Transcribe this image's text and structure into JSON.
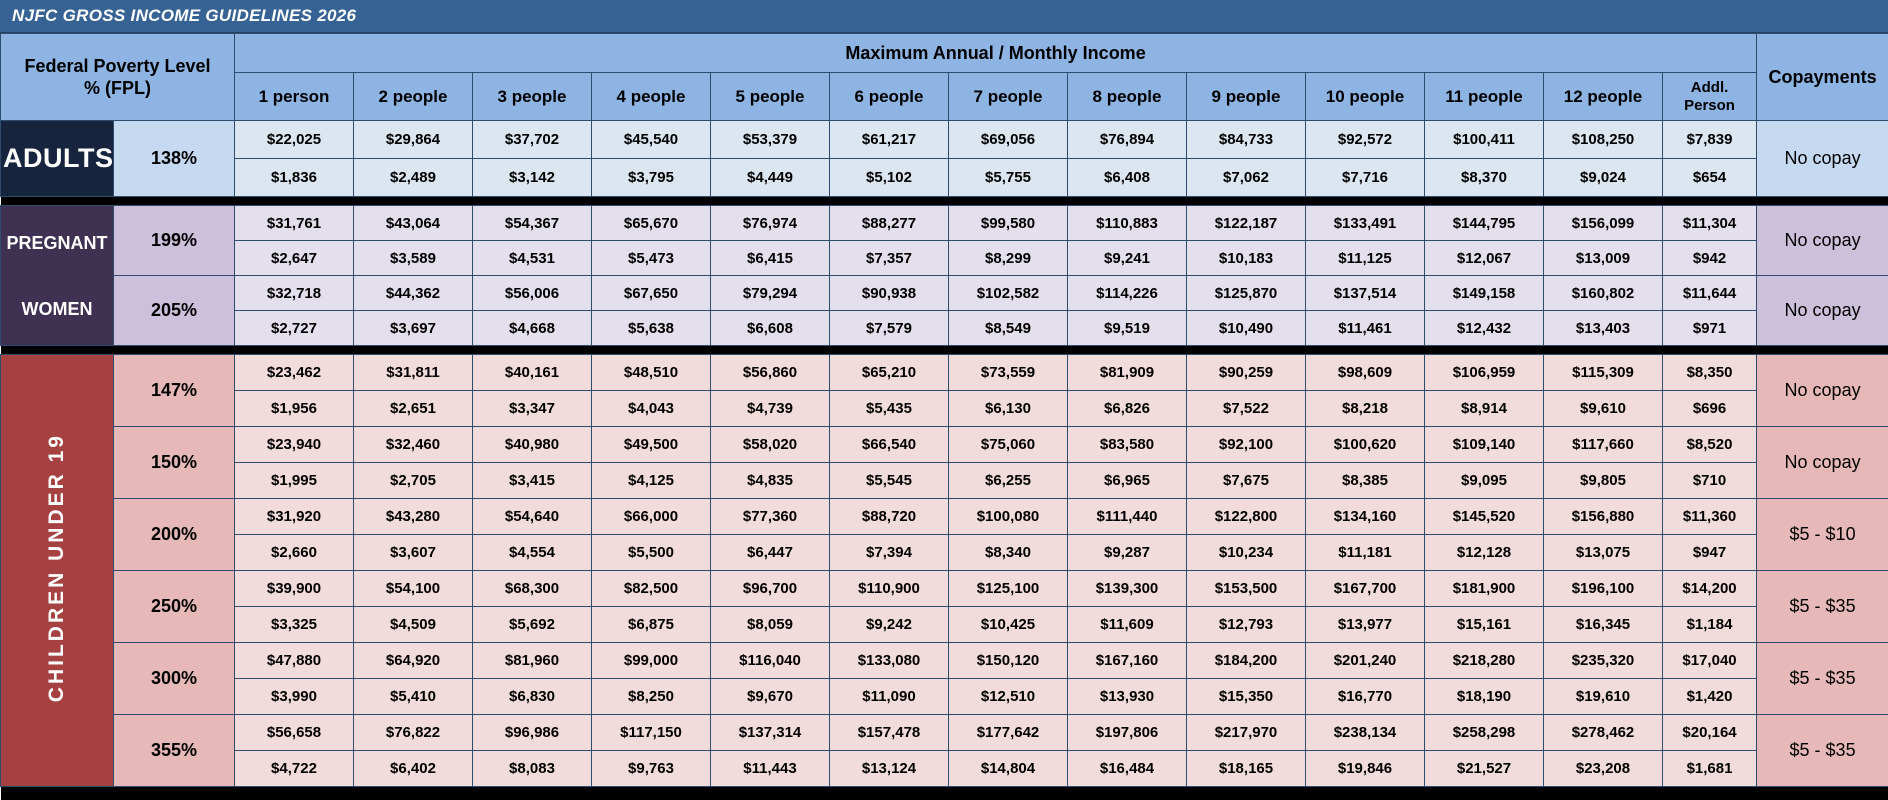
{
  "title": "NJFC GROSS INCOME GUIDELINES 2026",
  "colors": {
    "title_bar_bg": "#376394",
    "header_bg": "#8DB4E2",
    "grid_line": "#2E4D6E",
    "separator": "#000000"
  },
  "header": {
    "fpl_label": "Federal Poverty Level\n% (FPL)",
    "income_label": "Maximum Annual / Monthly Income",
    "copayments_label": "Copayments",
    "columns": [
      "1 person",
      "2 people",
      "3 people",
      "4 people",
      "5 people",
      "6 people",
      "7 people",
      "8 people",
      "9 people",
      "10 people",
      "11 people",
      "12 people",
      "Addl.\nPerson"
    ]
  },
  "groups": [
    {
      "id": "adults",
      "label": "ADULTS",
      "vertical_text": false,
      "colors": {
        "label_bg": "#16243E",
        "label_text": "#FFFFFF",
        "pct_bg": "#C5D9F1",
        "cell_bg": "#DCE6F1",
        "copay_bg": "#C5D9F1"
      },
      "rows": [
        {
          "fpl": "138%",
          "annual": [
            "$22,025",
            "$29,864",
            "$37,702",
            "$45,540",
            "$53,379",
            "$61,217",
            "$69,056",
            "$76,894",
            "$84,733",
            "$92,572",
            "$100,411",
            "$108,250",
            "$7,839"
          ],
          "monthly": [
            "$1,836",
            "$2,489",
            "$3,142",
            "$3,795",
            "$4,449",
            "$5,102",
            "$5,755",
            "$6,408",
            "$7,062",
            "$7,716",
            "$8,370",
            "$9,024",
            "$654"
          ],
          "copay": "No copay"
        }
      ]
    },
    {
      "id": "pregnant-women",
      "label": "PREGNANT WOMEN",
      "vertical_text": false,
      "colors": {
        "label_bg": "#3F3152",
        "label_text": "#FFFFFF",
        "pct_bg": "#CCC0DA",
        "cell_bg": "#E4DFEC",
        "copay_bg": "#CCC0DA"
      },
      "rows": [
        {
          "fpl": "199%",
          "annual": [
            "$31,761",
            "$43,064",
            "$54,367",
            "$65,670",
            "$76,974",
            "$88,277",
            "$99,580",
            "$110,883",
            "$122,187",
            "$133,491",
            "$144,795",
            "$156,099",
            "$11,304"
          ],
          "monthly": [
            "$2,647",
            "$3,589",
            "$4,531",
            "$5,473",
            "$6,415",
            "$7,357",
            "$8,299",
            "$9,241",
            "$10,183",
            "$11,125",
            "$12,067",
            "$13,009",
            "$942"
          ],
          "copay": "No copay"
        },
        {
          "fpl": "205%",
          "annual": [
            "$32,718",
            "$44,362",
            "$56,006",
            "$67,650",
            "$79,294",
            "$90,938",
            "$102,582",
            "$114,226",
            "$125,870",
            "$137,514",
            "$149,158",
            "$160,802",
            "$11,644"
          ],
          "monthly": [
            "$2,727",
            "$3,697",
            "$4,668",
            "$5,638",
            "$6,608",
            "$7,579",
            "$8,549",
            "$9,519",
            "$10,490",
            "$11,461",
            "$12,432",
            "$13,403",
            "$971"
          ],
          "copay": "No copay"
        }
      ]
    },
    {
      "id": "children-under-19",
      "label": "CHILDREN UNDER 19",
      "vertical_text": true,
      "colors": {
        "label_bg": "#A64141",
        "label_text": "#FFFFFF",
        "pct_bg": "#E6B8B7",
        "cell_bg": "#F2DCDB",
        "copay_bg": "#E6B8B7"
      },
      "rows": [
        {
          "fpl": "147%",
          "annual": [
            "$23,462",
            "$31,811",
            "$40,161",
            "$48,510",
            "$56,860",
            "$65,210",
            "$73,559",
            "$81,909",
            "$90,259",
            "$98,609",
            "$106,959",
            "$115,309",
            "$8,350"
          ],
          "monthly": [
            "$1,956",
            "$2,651",
            "$3,347",
            "$4,043",
            "$4,739",
            "$5,435",
            "$6,130",
            "$6,826",
            "$7,522",
            "$8,218",
            "$8,914",
            "$9,610",
            "$696"
          ],
          "copay": "No copay"
        },
        {
          "fpl": "150%",
          "annual": [
            "$23,940",
            "$32,460",
            "$40,980",
            "$49,500",
            "$58,020",
            "$66,540",
            "$75,060",
            "$83,580",
            "$92,100",
            "$100,620",
            "$109,140",
            "$117,660",
            "$8,520"
          ],
          "monthly": [
            "$1,995",
            "$2,705",
            "$3,415",
            "$4,125",
            "$4,835",
            "$5,545",
            "$6,255",
            "$6,965",
            "$7,675",
            "$8,385",
            "$9,095",
            "$9,805",
            "$710"
          ],
          "copay": "No copay"
        },
        {
          "fpl": "200%",
          "annual": [
            "$31,920",
            "$43,280",
            "$54,640",
            "$66,000",
            "$77,360",
            "$88,720",
            "$100,080",
            "$111,440",
            "$122,800",
            "$134,160",
            "$145,520",
            "$156,880",
            "$11,360"
          ],
          "monthly": [
            "$2,660",
            "$3,607",
            "$4,554",
            "$5,500",
            "$6,447",
            "$7,394",
            "$8,340",
            "$9,287",
            "$10,234",
            "$11,181",
            "$12,128",
            "$13,075",
            "$947"
          ],
          "copay": "$5 - $10"
        },
        {
          "fpl": "250%",
          "annual": [
            "$39,900",
            "$54,100",
            "$68,300",
            "$82,500",
            "$96,700",
            "$110,900",
            "$125,100",
            "$139,300",
            "$153,500",
            "$167,700",
            "$181,900",
            "$196,100",
            "$14,200"
          ],
          "monthly": [
            "$3,325",
            "$4,509",
            "$5,692",
            "$6,875",
            "$8,059",
            "$9,242",
            "$10,425",
            "$11,609",
            "$12,793",
            "$13,977",
            "$15,161",
            "$16,345",
            "$1,184"
          ],
          "copay": "$5 - $35"
        },
        {
          "fpl": "300%",
          "annual": [
            "$47,880",
            "$64,920",
            "$81,960",
            "$99,000",
            "$116,040",
            "$133,080",
            "$150,120",
            "$167,160",
            "$184,200",
            "$201,240",
            "$218,280",
            "$235,320",
            "$17,040"
          ],
          "monthly": [
            "$3,990",
            "$5,410",
            "$6,830",
            "$8,250",
            "$9,670",
            "$11,090",
            "$12,510",
            "$13,930",
            "$15,350",
            "$16,770",
            "$18,190",
            "$19,610",
            "$1,420"
          ],
          "copay": "$5 - $35"
        },
        {
          "fpl": "355%",
          "annual": [
            "$56,658",
            "$76,822",
            "$96,986",
            "$117,150",
            "$137,314",
            "$157,478",
            "$177,642",
            "$197,806",
            "$217,970",
            "$238,134",
            "$258,298",
            "$278,462",
            "$20,164"
          ],
          "monthly": [
            "$4,722",
            "$6,402",
            "$8,083",
            "$9,763",
            "$11,443",
            "$13,124",
            "$14,804",
            "$16,484",
            "$18,165",
            "$19,846",
            "$21,527",
            "$23,208",
            "$1,681"
          ],
          "copay": "$5 - $35"
        }
      ]
    }
  ]
}
